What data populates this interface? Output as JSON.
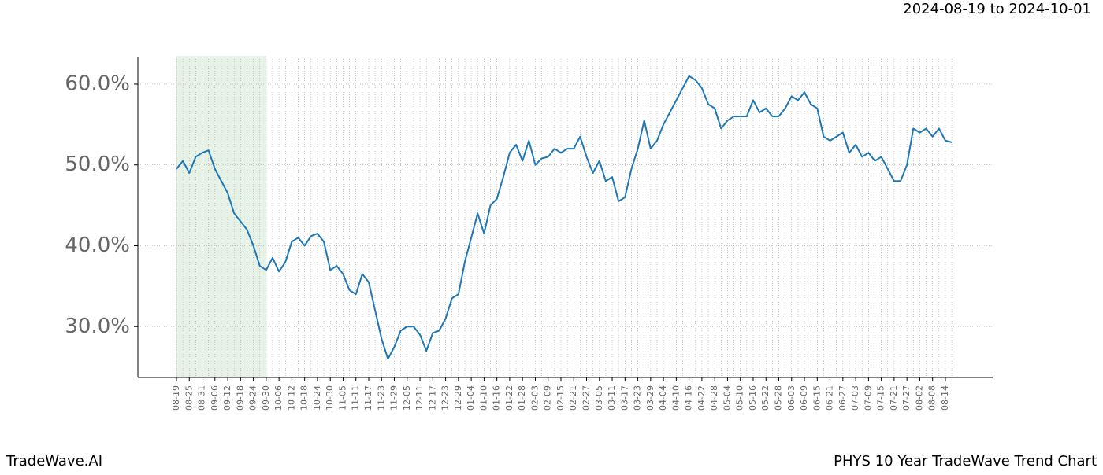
{
  "chart_data": {
    "type": "line",
    "subtitle": "2024-08-19 to 2024-10-01",
    "footer_left": "TradeWave.AI",
    "footer_right": "PHYS 10 Year TradeWave Trend Chart",
    "categories": [
      "08-19",
      null,
      "08-25",
      null,
      "08-31",
      null,
      "09-06",
      null,
      "09-12",
      null,
      "09-18",
      null,
      "09-24",
      null,
      "09-30",
      null,
      "10-06",
      null,
      "10-12",
      null,
      "10-18",
      null,
      "10-24",
      null,
      "10-30",
      null,
      "11-05",
      null,
      "11-11",
      null,
      "11-17",
      null,
      "11-23",
      null,
      "11-29",
      null,
      "12-05",
      null,
      "12-11",
      null,
      "12-17",
      null,
      "12-23",
      null,
      "12-29",
      null,
      "01-04",
      null,
      "01-10",
      null,
      "01-16",
      null,
      "01-22",
      null,
      "01-28",
      null,
      "02-03",
      null,
      "02-09",
      null,
      "02-15",
      null,
      "02-21",
      null,
      "02-27",
      null,
      "03-05",
      null,
      "03-11",
      null,
      "03-17",
      null,
      "03-23",
      null,
      "03-29",
      null,
      "04-04",
      null,
      "04-10",
      null,
      "04-16",
      null,
      "04-22",
      null,
      "04-28",
      null,
      "05-04",
      null,
      "05-10",
      null,
      "05-16",
      null,
      "05-22",
      null,
      "05-28",
      null,
      "06-03",
      null,
      "06-09",
      null,
      "06-15",
      null,
      "06-21",
      null,
      "06-27",
      null,
      "07-03",
      null,
      "07-09",
      null,
      "07-15",
      null,
      "07-21",
      null,
      "07-27",
      null,
      "08-02",
      null,
      "08-08",
      null,
      "08-14",
      null
    ],
    "series": [
      {
        "color": "#1f77b4",
        "values": [
          49.5,
          50.5,
          49,
          51,
          51.5,
          51.8,
          49.5,
          48,
          46.5,
          44,
          43,
          42,
          40,
          37.5,
          37,
          38.5,
          36.8,
          38,
          40.5,
          41,
          40,
          41.2,
          41.5,
          40.5,
          37,
          37.5,
          36.5,
          34.5,
          34,
          36.5,
          35.5,
          32,
          28.5,
          26,
          27.5,
          29.5,
          30,
          30,
          29,
          27,
          29.2,
          29.5,
          31,
          33.5,
          34,
          38,
          41,
          44,
          41.5,
          45,
          45.8,
          48.5,
          51.5,
          52.5,
          50.5,
          53,
          50,
          50.8,
          51,
          52,
          51.5,
          52,
          52,
          53.5,
          51,
          49,
          50.5,
          48,
          48.5,
          45.5,
          46,
          49.5,
          52,
          55.5,
          52,
          53,
          55,
          56.5,
          58,
          59.5,
          61,
          60.5,
          59.5,
          57.5,
          57,
          54.5,
          55.5,
          56,
          56,
          56,
          58,
          56.5,
          57,
          56,
          56,
          57,
          58.5,
          58,
          59,
          57.5,
          57,
          53.5,
          53,
          53.5,
          54,
          51.5,
          52.5,
          51,
          51.5,
          50.5,
          51,
          49.5,
          48,
          48,
          50,
          54.5,
          54,
          54.5,
          53.5,
          54.5,
          53,
          52.8
        ]
      }
    ],
    "shade": {
      "start": 0,
      "end": 14,
      "color": "#e6f2e6"
    },
    "ylim": [
      23.7,
      63.4
    ],
    "yticks": [
      {
        "value": 30,
        "label": "30.0%"
      },
      {
        "value": 40,
        "label": "40.0%"
      },
      {
        "value": 50,
        "label": "50.0%"
      },
      {
        "value": 60,
        "label": "60.0%"
      }
    ],
    "grid": true
  }
}
